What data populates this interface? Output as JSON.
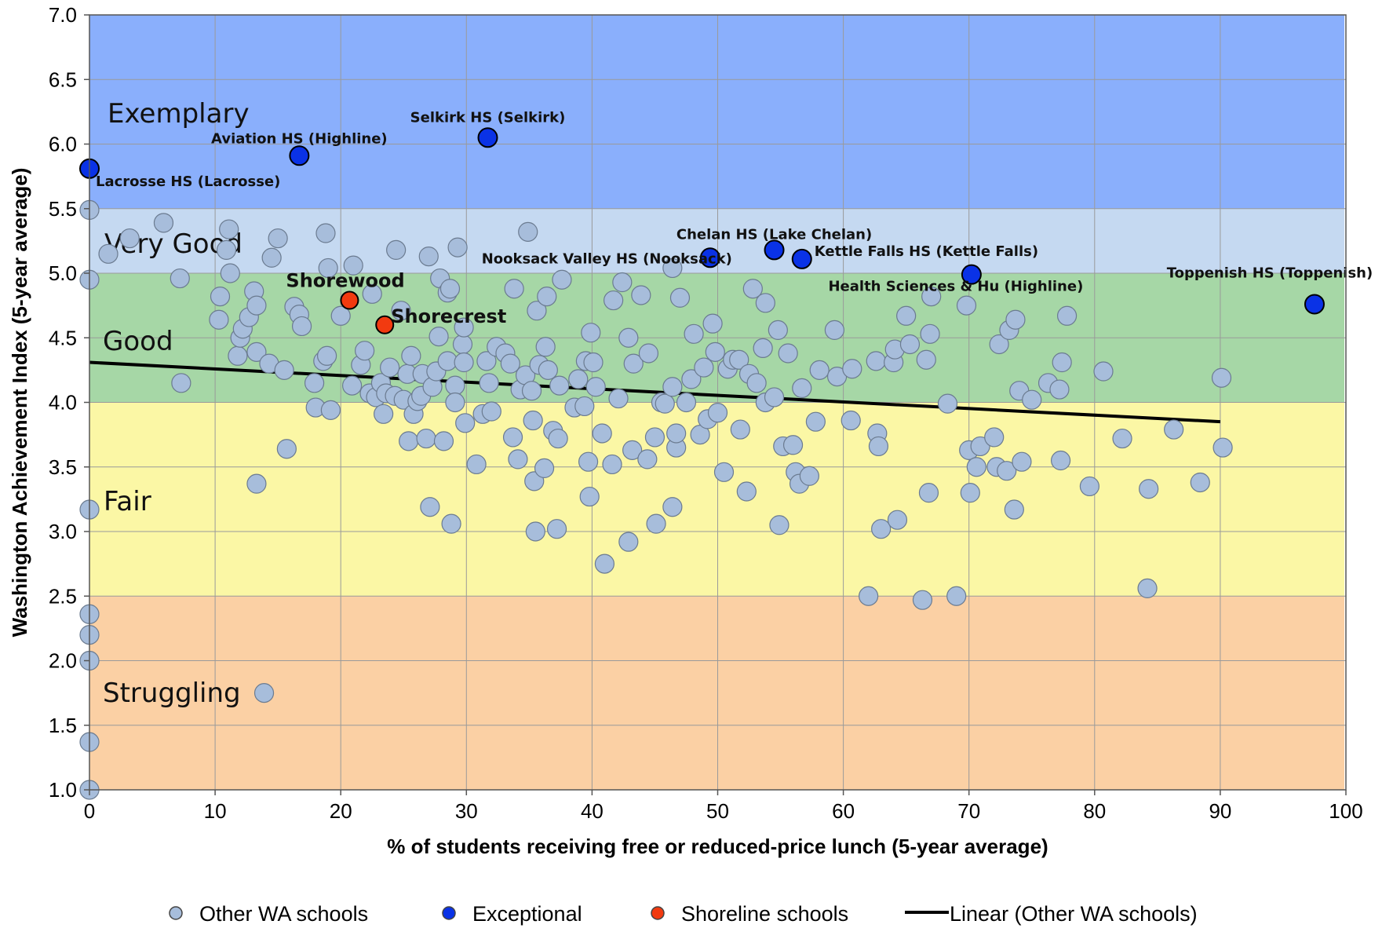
{
  "chart_data": {
    "type": "scatter",
    "xlabel": "% of students receiving free or reduced-price lunch (5-year average)",
    "ylabel": "Washington Achievement Index (5-year average)",
    "xlim": [
      0,
      100
    ],
    "ylim": [
      1.0,
      7.0
    ],
    "x_ticks": [
      "0",
      "10",
      "20",
      "30",
      "40",
      "50",
      "60",
      "70",
      "80",
      "90",
      "100"
    ],
    "y_ticks": [
      "1.0",
      "1.5",
      "2.0",
      "2.5",
      "3.0",
      "3.5",
      "4.0",
      "4.5",
      "5.0",
      "5.5",
      "6.0",
      "6.5",
      "7.0"
    ],
    "grid": true,
    "legend_position": "bottom",
    "bands": [
      {
        "label": "Exemplary",
        "from": 5.5,
        "to": 7.0,
        "color": "#8aaffc"
      },
      {
        "label": "Very Good",
        "from": 5.0,
        "to": 5.5,
        "color": "#c5d9f1"
      },
      {
        "label": "Good",
        "from": 4.0,
        "to": 5.0,
        "color": "#a6d7a6"
      },
      {
        "label": "Fair",
        "from": 2.5,
        "to": 4.0,
        "color": "#fbf7a5"
      },
      {
        "label": "Struggling",
        "from": 1.0,
        "to": 2.5,
        "color": "#fbd0a4"
      }
    ],
    "series": [
      {
        "name": "Other WA schools",
        "color": "#a7bddb",
        "points": [
          [
            0,
            5.49
          ],
          [
            0,
            4.95
          ],
          [
            0,
            3.17
          ],
          [
            0,
            2.36
          ],
          [
            0,
            2.2
          ],
          [
            0,
            2.0
          ],
          [
            0,
            1.37
          ],
          [
            0,
            1.0
          ],
          [
            1.5,
            5.15
          ],
          [
            3.2,
            5.27
          ],
          [
            5.9,
            5.39
          ],
          [
            7.2,
            4.96
          ],
          [
            7.3,
            4.15
          ],
          [
            10.3,
            4.64
          ],
          [
            10.4,
            4.82
          ],
          [
            10.9,
            5.18
          ],
          [
            11.1,
            5.34
          ],
          [
            11.2,
            5.0
          ],
          [
            11.8,
            4.36
          ],
          [
            12.0,
            4.5
          ],
          [
            12.2,
            4.57
          ],
          [
            12.7,
            4.66
          ],
          [
            13.1,
            4.86
          ],
          [
            13.3,
            4.75
          ],
          [
            13.3,
            4.39
          ],
          [
            13.3,
            3.37
          ],
          [
            13.9,
            1.75
          ],
          [
            14.3,
            4.3
          ],
          [
            14.5,
            5.12
          ],
          [
            15.0,
            5.27
          ],
          [
            15.5,
            4.25
          ],
          [
            15.7,
            3.64
          ],
          [
            16.3,
            4.74
          ],
          [
            16.7,
            4.68
          ],
          [
            16.9,
            4.59
          ],
          [
            17.9,
            4.15
          ],
          [
            18.0,
            3.96
          ],
          [
            18.6,
            4.32
          ],
          [
            18.8,
            5.31
          ],
          [
            18.9,
            4.36
          ],
          [
            19.0,
            5.04
          ],
          [
            19.2,
            3.94
          ],
          [
            20.0,
            4.67
          ],
          [
            20.9,
            4.13
          ],
          [
            21.0,
            5.06
          ],
          [
            21.6,
            4.29
          ],
          [
            21.9,
            4.4
          ],
          [
            22.3,
            4.07
          ],
          [
            22.5,
            4.84
          ],
          [
            22.8,
            4.04
          ],
          [
            23.2,
            4.15
          ],
          [
            23.4,
            3.91
          ],
          [
            23.6,
            4.07
          ],
          [
            23.9,
            4.27
          ],
          [
            24.3,
            4.05
          ],
          [
            24.4,
            5.18
          ],
          [
            24.8,
            4.71
          ],
          [
            25.0,
            4.02
          ],
          [
            25.3,
            4.22
          ],
          [
            25.4,
            3.7
          ],
          [
            25.6,
            4.36
          ],
          [
            25.8,
            3.91
          ],
          [
            26.1,
            4.01
          ],
          [
            26.4,
            4.05
          ],
          [
            26.5,
            4.22
          ],
          [
            26.8,
            3.72
          ],
          [
            27.0,
            5.13
          ],
          [
            27.1,
            3.19
          ],
          [
            27.3,
            4.12
          ],
          [
            27.6,
            4.24
          ],
          [
            27.8,
            4.51
          ],
          [
            27.9,
            4.96
          ],
          [
            28.2,
            3.7
          ],
          [
            28.5,
            4.85
          ],
          [
            28.5,
            4.32
          ],
          [
            28.7,
            4.88
          ],
          [
            28.8,
            3.06
          ],
          [
            29.1,
            4.13
          ],
          [
            29.1,
            4.0
          ],
          [
            29.3,
            5.2
          ],
          [
            29.7,
            4.45
          ],
          [
            29.8,
            4.58
          ],
          [
            29.8,
            4.31
          ],
          [
            29.9,
            3.84
          ],
          [
            30.8,
            3.52
          ],
          [
            31.3,
            3.91
          ],
          [
            31.6,
            4.32
          ],
          [
            31.8,
            4.15
          ],
          [
            32.0,
            3.93
          ],
          [
            32.4,
            4.43
          ],
          [
            33.1,
            4.38
          ],
          [
            33.5,
            4.3
          ],
          [
            33.7,
            3.73
          ],
          [
            33.8,
            4.88
          ],
          [
            34.1,
            3.56
          ],
          [
            34.3,
            4.1
          ],
          [
            34.7,
            4.21
          ],
          [
            34.9,
            5.32
          ],
          [
            35.2,
            4.09
          ],
          [
            35.3,
            3.86
          ],
          [
            35.4,
            3.39
          ],
          [
            35.5,
            3.0
          ],
          [
            35.6,
            4.71
          ],
          [
            35.8,
            4.29
          ],
          [
            36.2,
            3.49
          ],
          [
            36.3,
            4.43
          ],
          [
            36.4,
            4.82
          ],
          [
            36.5,
            4.25
          ],
          [
            36.9,
            3.78
          ],
          [
            37.2,
            3.02
          ],
          [
            37.3,
            3.72
          ],
          [
            37.4,
            4.13
          ],
          [
            37.6,
            4.95
          ],
          [
            38.6,
            3.96
          ],
          [
            38.9,
            4.18
          ],
          [
            39.4,
            3.97
          ],
          [
            39.5,
            4.32
          ],
          [
            39.7,
            3.54
          ],
          [
            39.8,
            3.27
          ],
          [
            39.9,
            4.54
          ],
          [
            40.1,
            4.31
          ],
          [
            40.3,
            4.12
          ],
          [
            40.8,
            3.76
          ],
          [
            41.0,
            2.75
          ],
          [
            41.6,
            3.52
          ],
          [
            41.7,
            4.79
          ],
          [
            42.1,
            4.03
          ],
          [
            42.4,
            4.93
          ],
          [
            42.9,
            4.5
          ],
          [
            42.9,
            2.92
          ],
          [
            43.2,
            3.63
          ],
          [
            43.3,
            4.3
          ],
          [
            43.9,
            4.83
          ],
          [
            44.4,
            3.56
          ],
          [
            44.5,
            4.38
          ],
          [
            45.0,
            3.73
          ],
          [
            45.1,
            3.06
          ],
          [
            45.5,
            4.0
          ],
          [
            45.8,
            3.99
          ],
          [
            46.4,
            4.12
          ],
          [
            46.4,
            5.04
          ],
          [
            46.4,
            3.19
          ],
          [
            46.7,
            3.65
          ],
          [
            46.7,
            3.76
          ],
          [
            47.0,
            4.81
          ],
          [
            47.5,
            4.0
          ],
          [
            47.9,
            4.18
          ],
          [
            48.1,
            4.53
          ],
          [
            48.6,
            3.75
          ],
          [
            48.9,
            4.27
          ],
          [
            49.2,
            3.87
          ],
          [
            49.6,
            4.61
          ],
          [
            49.8,
            4.39
          ],
          [
            50.0,
            3.92
          ],
          [
            50.5,
            3.46
          ],
          [
            50.8,
            4.26
          ],
          [
            51.2,
            4.33
          ],
          [
            51.7,
            4.33
          ],
          [
            51.8,
            3.79
          ],
          [
            52.3,
            3.31
          ],
          [
            52.5,
            4.22
          ],
          [
            52.8,
            4.88
          ],
          [
            53.1,
            4.15
          ],
          [
            53.6,
            4.42
          ],
          [
            53.8,
            4.77
          ],
          [
            53.8,
            4.0
          ],
          [
            54.5,
            4.04
          ],
          [
            54.8,
            4.56
          ],
          [
            54.9,
            3.05
          ],
          [
            55.2,
            3.66
          ],
          [
            55.6,
            4.38
          ],
          [
            56.0,
            3.67
          ],
          [
            56.2,
            3.46
          ],
          [
            56.5,
            3.37
          ],
          [
            56.7,
            4.11
          ],
          [
            57.3,
            3.43
          ],
          [
            57.8,
            3.85
          ],
          [
            58.1,
            4.25
          ],
          [
            59.3,
            4.56
          ],
          [
            59.5,
            4.2
          ],
          [
            60.6,
            3.86
          ],
          [
            60.7,
            4.26
          ],
          [
            62.0,
            2.5
          ],
          [
            62.6,
            4.32
          ],
          [
            62.7,
            3.76
          ],
          [
            62.8,
            3.66
          ],
          [
            63.0,
            3.02
          ],
          [
            64.0,
            4.31
          ],
          [
            64.1,
            4.41
          ],
          [
            64.3,
            3.09
          ],
          [
            65.0,
            4.67
          ],
          [
            65.3,
            4.45
          ],
          [
            66.3,
            2.47
          ],
          [
            66.6,
            4.33
          ],
          [
            66.8,
            3.3
          ],
          [
            66.9,
            4.53
          ],
          [
            67.0,
            4.82
          ],
          [
            68.3,
            3.99
          ],
          [
            69.0,
            2.5
          ],
          [
            69.8,
            4.75
          ],
          [
            70.0,
            3.63
          ],
          [
            70.1,
            3.3
          ],
          [
            70.6,
            3.5
          ],
          [
            70.9,
            3.66
          ],
          [
            72.0,
            3.73
          ],
          [
            72.2,
            3.5
          ],
          [
            72.4,
            4.45
          ],
          [
            73.0,
            3.47
          ],
          [
            73.2,
            4.56
          ],
          [
            73.6,
            3.17
          ],
          [
            73.7,
            4.64
          ],
          [
            74.0,
            4.09
          ],
          [
            74.2,
            3.54
          ],
          [
            75.0,
            4.02
          ],
          [
            76.3,
            4.15
          ],
          [
            77.2,
            4.1
          ],
          [
            77.3,
            3.55
          ],
          [
            77.4,
            4.31
          ],
          [
            77.8,
            4.67
          ],
          [
            79.6,
            3.35
          ],
          [
            80.7,
            4.24
          ],
          [
            82.2,
            3.72
          ],
          [
            84.2,
            2.56
          ],
          [
            84.3,
            3.33
          ],
          [
            86.3,
            3.79
          ],
          [
            88.4,
            3.38
          ],
          [
            90.1,
            4.19
          ],
          [
            90.2,
            3.65
          ]
        ]
      },
      {
        "name": "Exceptional",
        "color": "#0a32e6",
        "points": [
          {
            "x": 0,
            "y": 5.81,
            "label": "Lacrosse HS (Lacrosse)"
          },
          {
            "x": 16.7,
            "y": 5.91,
            "label": "Aviation HS (Highline)"
          },
          {
            "x": 31.7,
            "y": 6.05,
            "label": "Selkirk HS (Selkirk)"
          },
          {
            "x": 49.4,
            "y": 5.12,
            "label": "Nooksack Valley HS (Nooksack)"
          },
          {
            "x": 54.5,
            "y": 5.18,
            "label": "Chelan HS (Lake Chelan)"
          },
          {
            "x": 56.7,
            "y": 5.11,
            "label": "Kettle Falls HS (Kettle Falls)"
          },
          {
            "x": 70.2,
            "y": 4.99,
            "label": "Health Sciences & Hu (Highline)"
          },
          {
            "x": 97.5,
            "y": 4.76,
            "label": "Toppenish HS (Toppenish)"
          }
        ]
      },
      {
        "name": "Shoreline schools",
        "color": "#f23a10",
        "points": [
          {
            "x": 20.7,
            "y": 4.79,
            "label": "Shorewood"
          },
          {
            "x": 23.5,
            "y": 4.6,
            "label": "Shorecrest"
          }
        ]
      }
    ],
    "trendline": {
      "name": "Linear (Other WA schools)",
      "x": [
        0,
        90
      ],
      "y": [
        4.31,
        3.85
      ]
    }
  },
  "legend": {
    "items": [
      {
        "label": "Other WA schools",
        "color": "#a7bddb",
        "kind": "marker"
      },
      {
        "label": "Exceptional",
        "color": "#0a32e6",
        "kind": "marker"
      },
      {
        "label": "Shoreline schools",
        "color": "#f23a10",
        "kind": "marker"
      },
      {
        "label": "Linear (Other WA schools)",
        "color": "#000000",
        "kind": "line"
      }
    ]
  }
}
